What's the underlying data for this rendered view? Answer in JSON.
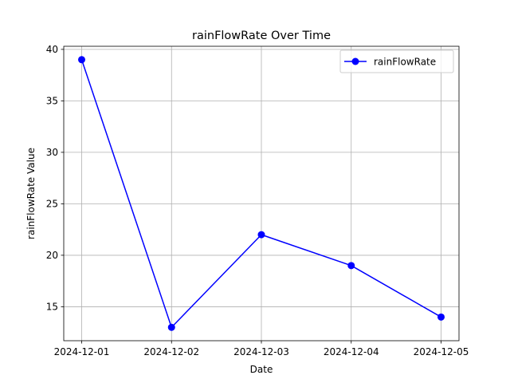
{
  "chart_data": {
    "type": "line",
    "title": "rainFlowRate Over Time",
    "xlabel": "Date",
    "ylabel": "rainFlowRate Value",
    "x": [
      "2024-12-01",
      "2024-12-02",
      "2024-12-03",
      "2024-12-04",
      "2024-12-05"
    ],
    "series": [
      {
        "name": "rainFlowRate",
        "values": [
          39,
          13,
          22,
          19,
          14
        ],
        "color": "#0000ff",
        "marker": "circle"
      }
    ],
    "ylim": [
      11.7,
      40.3
    ],
    "yticks": [
      15,
      20,
      25,
      30,
      35,
      40
    ],
    "grid": true,
    "legend": "top-right"
  }
}
